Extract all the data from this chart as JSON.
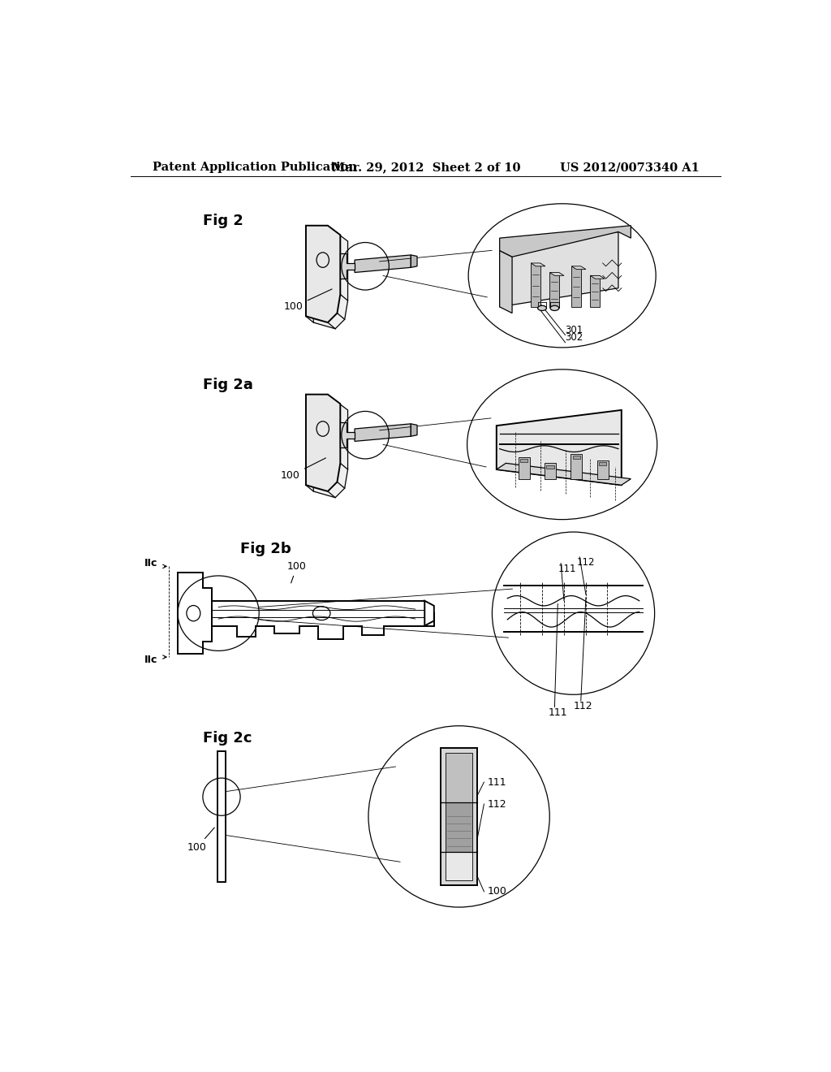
{
  "background_color": "#ffffff",
  "header_left": "Patent Application Publication",
  "header_mid": "Mar. 29, 2012  Sheet 2 of 10",
  "header_right": "US 2012/0073340 A1",
  "header_fontsize": 10.5,
  "fig2_label": "Fig 2",
  "fig2a_label": "Fig 2a",
  "fig2b_label": "Fig 2b",
  "fig2c_label": "Fig 2c",
  "label_100": "100",
  "label_301": "301",
  "label_302": "302",
  "label_111": "111",
  "label_112": "112",
  "IIc_label": "IIc",
  "line_color": "#000000",
  "text_color": "#000000"
}
